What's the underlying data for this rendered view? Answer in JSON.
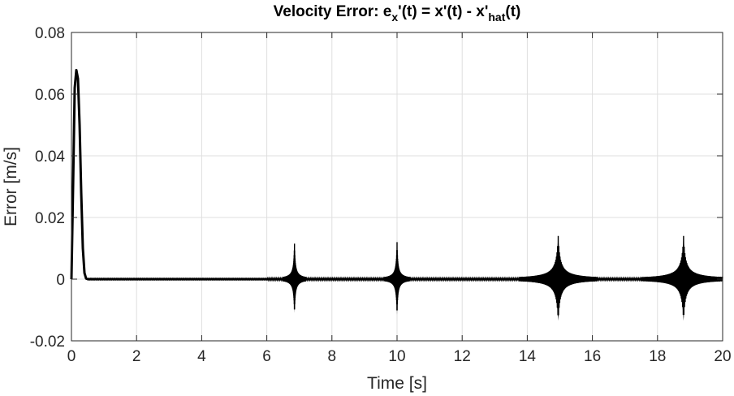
{
  "chart_data": {
    "type": "line",
    "title": {
      "main": "Velocity Error: e",
      "sub1": "x",
      "mid": "'(t) = x'(t) - x'",
      "sub2": "hat",
      "tail": "(t)"
    },
    "xlabel": "Time [s]",
    "ylabel": "Error [m/s]",
    "xlim": [
      0,
      20
    ],
    "ylim": [
      -0.02,
      0.08
    ],
    "x_ticks": [
      0,
      2,
      4,
      6,
      8,
      10,
      12,
      14,
      16,
      18,
      20
    ],
    "x_tick_labels": [
      "0",
      "2",
      "4",
      "6",
      "8",
      "10",
      "12",
      "14",
      "16",
      "18",
      "20"
    ],
    "y_ticks": [
      -0.02,
      0,
      0.02,
      0.04,
      0.06,
      0.08
    ],
    "y_tick_labels": [
      "-0.02",
      "0",
      "0.02",
      "0.04",
      "0.06",
      "0.08"
    ],
    "grid": true,
    "line_color": "#000000",
    "series": [
      {
        "points": [
          [
            0,
            0
          ],
          [
            0.05,
            0.03
          ],
          [
            0.1,
            0.062
          ],
          [
            0.15,
            0.0678
          ],
          [
            0.2,
            0.065
          ],
          [
            0.25,
            0.05
          ],
          [
            0.3,
            0.028
          ],
          [
            0.35,
            0.01
          ],
          [
            0.4,
            0.002
          ],
          [
            0.45,
            0.0002
          ],
          [
            0.5,
            0
          ],
          [
            2,
            0
          ],
          [
            4,
            0
          ],
          [
            6,
            0
          ],
          [
            6.8,
            0
          ],
          [
            10,
            0
          ],
          [
            14,
            0
          ],
          [
            18,
            0
          ],
          [
            20,
            0
          ]
        ]
      }
    ],
    "oscillation_bursts": [
      {
        "center": 6.85,
        "peak": 0.0115,
        "trough": -0.011,
        "width": 0.7
      },
      {
        "center": 10.0,
        "peak": 0.012,
        "trough": -0.0115,
        "width": 0.8
      },
      {
        "center": 14.95,
        "peak": 0.014,
        "trough": -0.0135,
        "width": 2.4
      },
      {
        "center": 18.8,
        "peak": 0.014,
        "trough": -0.0135,
        "width": 2.6
      }
    ]
  }
}
